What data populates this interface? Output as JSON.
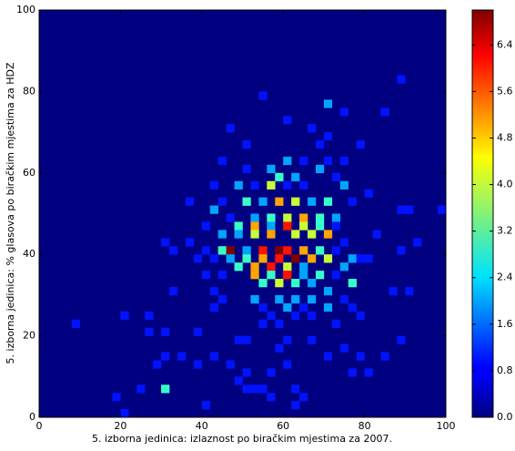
{
  "chart_data": {
    "type": "hist2d",
    "xlabel": "5. izborna jedinica: izlaznost po biračkim mjestima za 2007.",
    "ylabel": "5. izborna jedinica: % glasova po biračkim mjestima za HDZ",
    "xlim": [
      0,
      100
    ],
    "ylim": [
      0,
      100
    ],
    "xticks": [
      0,
      20,
      40,
      60,
      80,
      100
    ],
    "yticks": [
      0,
      20,
      40,
      60,
      80,
      100
    ],
    "bins": [
      50,
      50
    ],
    "colormap": "jet",
    "clim": [
      0,
      7.0
    ],
    "cticks": [
      {
        "value": 0,
        "label": "0.0"
      },
      {
        "value": 0.8,
        "label": "0.8"
      },
      {
        "value": 1.6,
        "label": "1.6"
      },
      {
        "value": 2.4,
        "label": "2.4"
      },
      {
        "value": 3.2,
        "label": "3.2"
      },
      {
        "value": 4.0,
        "label": "4.0"
      },
      {
        "value": 4.8,
        "label": "4.8"
      },
      {
        "value": 5.6,
        "label": "5.6"
      },
      {
        "value": 6.4,
        "label": "6.4"
      }
    ],
    "cells": [
      [
        88,
        82,
        1
      ],
      [
        54,
        78,
        1
      ],
      [
        70,
        76,
        2
      ],
      [
        74,
        74,
        1
      ],
      [
        84,
        74,
        1
      ],
      [
        60,
        72,
        1
      ],
      [
        46,
        70,
        1
      ],
      [
        66,
        70,
        1
      ],
      [
        70,
        68,
        1
      ],
      [
        68,
        66,
        1
      ],
      [
        50,
        66,
        1
      ],
      [
        78,
        66,
        1
      ],
      [
        44,
        62,
        1
      ],
      [
        60,
        62,
        2
      ],
      [
        64,
        62,
        1
      ],
      [
        70,
        62,
        1
      ],
      [
        74,
        62,
        1
      ],
      [
        50,
        60,
        1
      ],
      [
        56,
        60,
        2
      ],
      [
        58,
        58,
        3
      ],
      [
        62,
        58,
        2
      ],
      [
        68,
        60,
        2
      ],
      [
        72,
        58,
        1
      ],
      [
        42,
        56,
        1
      ],
      [
        48,
        56,
        2
      ],
      [
        52,
        56,
        1
      ],
      [
        56,
        56,
        4
      ],
      [
        60,
        56,
        1
      ],
      [
        64,
        56,
        1
      ],
      [
        74,
        56,
        2
      ],
      [
        80,
        54,
        1
      ],
      [
        36,
        52,
        1
      ],
      [
        44,
        52,
        1
      ],
      [
        50,
        52,
        3
      ],
      [
        54,
        52,
        2
      ],
      [
        58,
        52,
        5
      ],
      [
        62,
        52,
        4
      ],
      [
        66,
        52,
        2
      ],
      [
        70,
        52,
        3
      ],
      [
        76,
        52,
        1
      ],
      [
        88,
        50,
        1
      ],
      [
        90,
        50,
        1
      ],
      [
        98,
        50,
        1
      ],
      [
        42,
        50,
        2
      ],
      [
        46,
        48,
        1
      ],
      [
        52,
        48,
        2
      ],
      [
        56,
        48,
        3
      ],
      [
        60,
        48,
        4
      ],
      [
        64,
        48,
        5
      ],
      [
        68,
        48,
        3
      ],
      [
        72,
        48,
        2
      ],
      [
        40,
        46,
        1
      ],
      [
        48,
        46,
        3
      ],
      [
        52,
        46,
        5
      ],
      [
        56,
        46,
        2
      ],
      [
        60,
        46,
        6
      ],
      [
        64,
        46,
        4
      ],
      [
        68,
        46,
        3
      ],
      [
        72,
        46,
        1
      ],
      [
        82,
        44,
        1
      ],
      [
        30,
        42,
        1
      ],
      [
        36,
        42,
        1
      ],
      [
        44,
        44,
        2
      ],
      [
        48,
        44,
        2
      ],
      [
        52,
        44,
        4
      ],
      [
        56,
        44,
        5
      ],
      [
        62,
        44,
        4
      ],
      [
        66,
        44,
        4
      ],
      [
        70,
        44,
        5
      ],
      [
        74,
        42,
        1
      ],
      [
        92,
        42,
        1
      ],
      [
        88,
        40,
        1
      ],
      [
        40,
        40,
        1
      ],
      [
        44,
        40,
        3
      ],
      [
        46,
        40,
        7
      ],
      [
        50,
        40,
        2
      ],
      [
        54,
        40,
        6
      ],
      [
        58,
        40,
        7
      ],
      [
        60,
        40,
        6
      ],
      [
        64,
        40,
        5
      ],
      [
        68,
        40,
        3
      ],
      [
        72,
        40,
        1
      ],
      [
        76,
        38,
        2
      ],
      [
        78,
        38,
        1
      ],
      [
        80,
        38,
        1
      ],
      [
        32,
        40,
        1
      ],
      [
        38,
        38,
        1
      ],
      [
        42,
        38,
        1
      ],
      [
        46,
        38,
        2
      ],
      [
        50,
        38,
        3
      ],
      [
        54,
        38,
        5
      ],
      [
        58,
        38,
        6
      ],
      [
        62,
        38,
        7
      ],
      [
        66,
        38,
        5
      ],
      [
        70,
        38,
        4
      ],
      [
        48,
        36,
        3
      ],
      [
        52,
        36,
        5
      ],
      [
        56,
        36,
        6
      ],
      [
        60,
        36,
        4
      ],
      [
        64,
        36,
        2
      ],
      [
        74,
        36,
        2
      ],
      [
        40,
        34,
        1
      ],
      [
        44,
        34,
        1
      ],
      [
        52,
        34,
        5
      ],
      [
        56,
        34,
        3
      ],
      [
        60,
        34,
        6
      ],
      [
        64,
        34,
        2
      ],
      [
        68,
        34,
        3
      ],
      [
        72,
        34,
        1
      ],
      [
        76,
        32,
        3
      ],
      [
        32,
        30,
        1
      ],
      [
        42,
        30,
        1
      ],
      [
        54,
        32,
        3
      ],
      [
        58,
        32,
        4
      ],
      [
        62,
        32,
        3
      ],
      [
        66,
        32,
        2
      ],
      [
        70,
        30,
        2
      ],
      [
        86,
        30,
        1
      ],
      [
        90,
        30,
        1
      ],
      [
        44,
        28,
        1
      ],
      [
        52,
        28,
        2
      ],
      [
        58,
        28,
        2
      ],
      [
        62,
        28,
        2
      ],
      [
        66,
        28,
        2
      ],
      [
        74,
        28,
        1
      ],
      [
        42,
        26,
        1
      ],
      [
        54,
        26,
        1
      ],
      [
        60,
        26,
        2
      ],
      [
        64,
        26,
        1
      ],
      [
        70,
        26,
        2
      ],
      [
        76,
        26,
        1
      ],
      [
        20,
        24,
        1
      ],
      [
        26,
        24,
        1
      ],
      [
        8,
        22,
        1
      ],
      [
        56,
        24,
        1
      ],
      [
        62,
        24,
        1
      ],
      [
        66,
        24,
        1
      ],
      [
        78,
        24,
        1
      ],
      [
        26,
        20,
        1
      ],
      [
        30,
        20,
        1
      ],
      [
        38,
        20,
        1
      ],
      [
        54,
        22,
        1
      ],
      [
        58,
        22,
        1
      ],
      [
        72,
        22,
        1
      ],
      [
        88,
        18,
        1
      ],
      [
        48,
        18,
        1
      ],
      [
        50,
        18,
        1
      ],
      [
        60,
        18,
        1
      ],
      [
        66,
        18,
        1
      ],
      [
        74,
        16,
        1
      ],
      [
        30,
        14,
        1
      ],
      [
        34,
        14,
        1
      ],
      [
        42,
        14,
        1
      ],
      [
        58,
        16,
        1
      ],
      [
        70,
        14,
        1
      ],
      [
        78,
        14,
        1
      ],
      [
        84,
        14,
        1
      ],
      [
        28,
        12,
        1
      ],
      [
        38,
        12,
        1
      ],
      [
        46,
        12,
        1
      ],
      [
        60,
        12,
        1
      ],
      [
        76,
        10,
        1
      ],
      [
        80,
        10,
        1
      ],
      [
        50,
        10,
        1
      ],
      [
        56,
        10,
        1
      ],
      [
        24,
        6,
        1
      ],
      [
        30,
        6,
        3
      ],
      [
        48,
        8,
        1
      ],
      [
        50,
        6,
        1
      ],
      [
        52,
        6,
        1
      ],
      [
        54,
        6,
        1
      ],
      [
        56,
        4,
        1
      ],
      [
        62,
        6,
        1
      ],
      [
        64,
        4,
        1
      ],
      [
        18,
        4,
        1
      ],
      [
        40,
        2,
        1
      ],
      [
        20,
        0,
        1
      ],
      [
        62,
        2,
        1
      ]
    ]
  }
}
